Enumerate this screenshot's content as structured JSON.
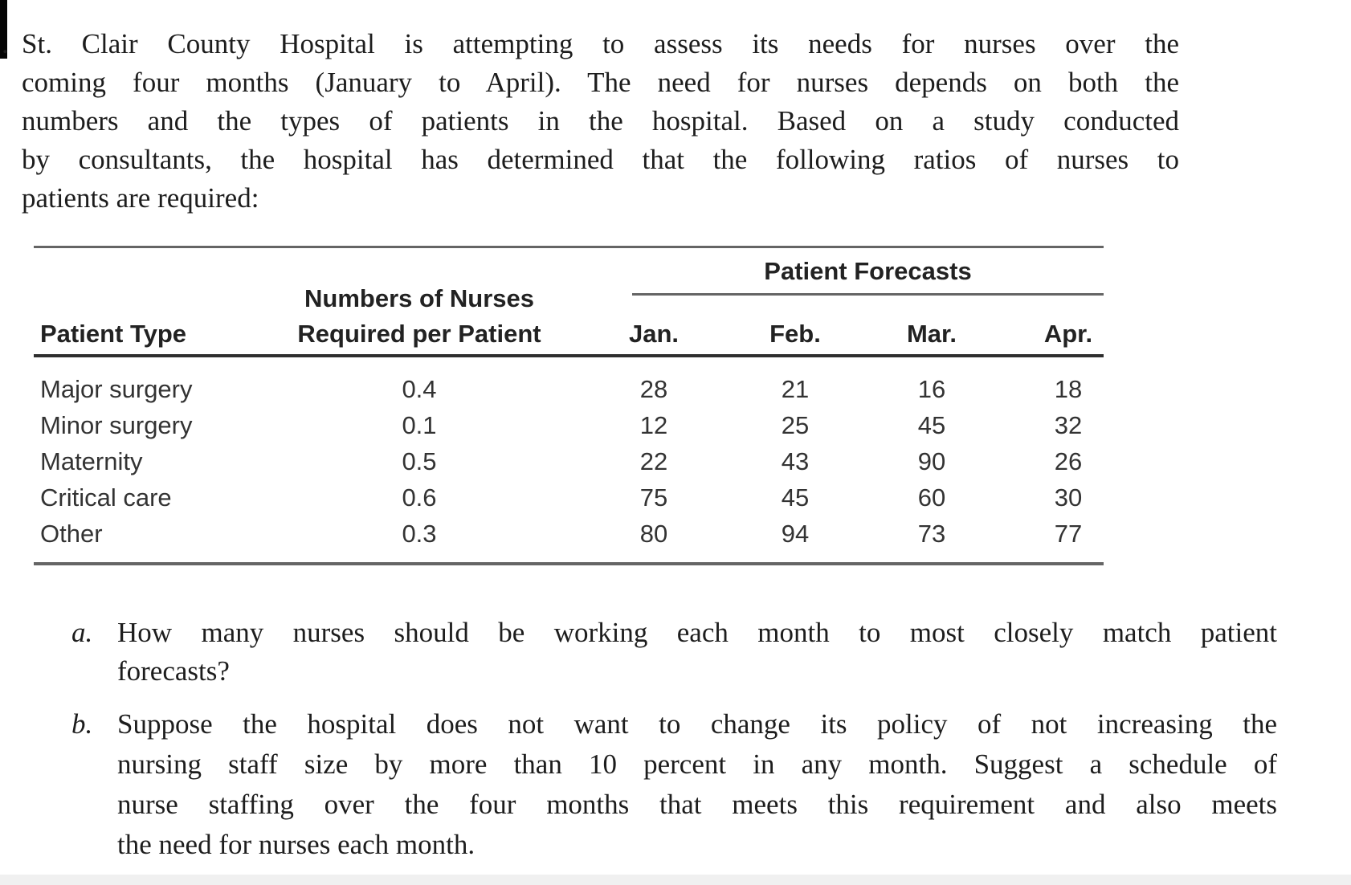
{
  "intro": {
    "marker": ".",
    "lines": [
      "St. Clair County Hospital is attempting to assess its needs for nurses over the",
      "coming four months (January to April). The need for nurses depends on both the",
      "numbers and the types of patients in the hospital. Based on a study conducted",
      "by consultants, the hospital has determined that the following ratios of nurses to",
      "patients are required:"
    ]
  },
  "table": {
    "patient_type_header": "Patient Type",
    "nurses_header_line1": "Numbers of Nurses",
    "nurses_header_line2": "Required per Patient",
    "forecasts_header": "Patient Forecasts",
    "months": [
      "Jan.",
      "Feb.",
      "Mar.",
      "Apr."
    ],
    "rows": [
      {
        "type": "Major surgery",
        "ratio": "0.4",
        "jan": "28",
        "feb": "21",
        "mar": "16",
        "apr": "18"
      },
      {
        "type": "Minor surgery",
        "ratio": "0.1",
        "jan": "12",
        "feb": "25",
        "mar": "45",
        "apr": "32"
      },
      {
        "type": "Maternity",
        "ratio": "0.5",
        "jan": "22",
        "feb": "43",
        "mar": "90",
        "apr": "26"
      },
      {
        "type": "Critical care",
        "ratio": "0.6",
        "jan": "75",
        "feb": "45",
        "mar": "60",
        "apr": "30"
      },
      {
        "type": "Other",
        "ratio": "0.3",
        "jan": "80",
        "feb": "94",
        "mar": "73",
        "apr": "77"
      }
    ]
  },
  "questions": [
    {
      "label": "a.",
      "lines": [
        "How many nurses should be working each month to most closely match patient",
        "forecasts?"
      ]
    },
    {
      "label": "b.",
      "lines": [
        "Suppose the hospital does not want to change its policy of not increasing the",
        "nursing staff size by more than 10 percent in any month. Suggest a schedule of",
        "nurse staffing over the four months that meets this requirement and also meets",
        "the need for nurses each month."
      ]
    }
  ]
}
